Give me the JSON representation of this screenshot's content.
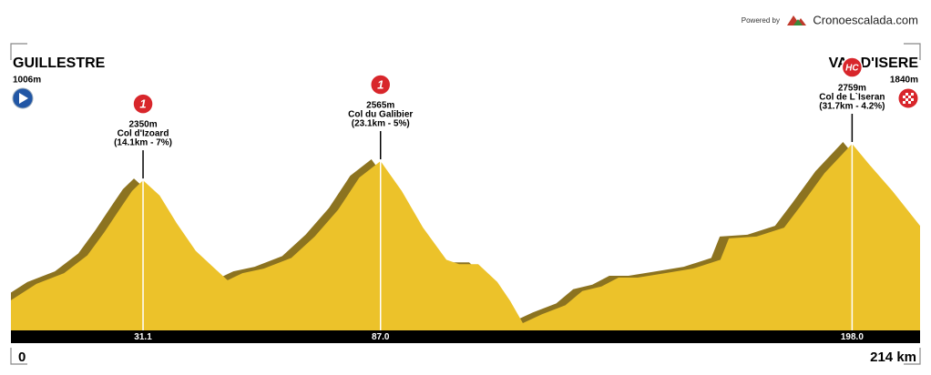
{
  "powered_by": "Powered by",
  "brand": "Cronoescalada.com",
  "chart_data": {
    "type": "area",
    "x": [
      0,
      6,
      12.5,
      18,
      22,
      25.5,
      28.5,
      31.1,
      35,
      39,
      43.5,
      48,
      51,
      54.5,
      59.5,
      66,
      71.5,
      77,
      82,
      87,
      92,
      97,
      102.5,
      105.5,
      110,
      114.5,
      117.5,
      120.5,
      125,
      130.5,
      134.5,
      139,
      143,
      147.5,
      154,
      160.5,
      167,
      169,
      175.5,
      182,
      186,
      191.5,
      198,
      202,
      207.5,
      214
    ],
    "values": [
      1006,
      1190,
      1310,
      1510,
      1770,
      2020,
      2230,
      2350,
      2180,
      1870,
      1560,
      1360,
      1230,
      1310,
      1360,
      1480,
      1720,
      2020,
      2380,
      2565,
      2230,
      1820,
      1460,
      1410,
      1410,
      1210,
      1000,
      750,
      850,
      950,
      1110,
      1160,
      1260,
      1260,
      1310,
      1360,
      1460,
      1700,
      1720,
      1820,
      2070,
      2430,
      2759,
      2530,
      2230,
      1840
    ],
    "color": "#ecc22a",
    "shadow_color": "#8c7320",
    "xlim": [
      0,
      214
    ],
    "xticks": [
      31.1,
      {
        "value": 87,
        "label": "87.0"
      },
      {
        "value": 198,
        "label": "198.0"
      }
    ],
    "distance_labels": {
      "start": "0",
      "end": "214 km"
    },
    "start": {
      "name": "GUILLESTRE",
      "elevation": "1006m"
    },
    "finish": {
      "name": "VAL D'ISERE",
      "elevation": "1840m"
    },
    "climbs": [
      {
        "x": 31.1,
        "category": "1",
        "elevation": "2350m",
        "name": "Col d'Izoard",
        "detail": "(14.1km - 7%)"
      },
      {
        "x": 87,
        "category": "1",
        "elevation": "2565m",
        "name": "Col du Galibier",
        "detail": "(23.1km - 5%)"
      },
      {
        "x": 198,
        "category": "HC",
        "elevation": "2759m",
        "name": "Col de L`Iseran",
        "detail": "(31.7km - 4.2%)"
      }
    ]
  }
}
